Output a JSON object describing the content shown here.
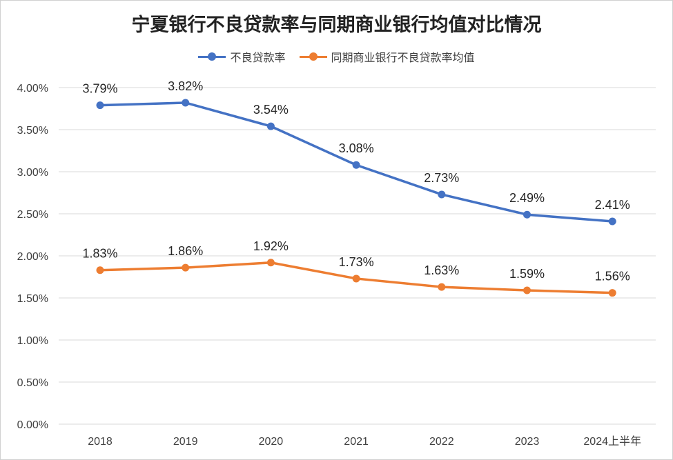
{
  "chart_data": {
    "type": "line",
    "title": "宁夏银行不良贷款率与同期商业银行均值对比情况",
    "categories": [
      "2018",
      "2019",
      "2020",
      "2021",
      "2022",
      "2023",
      "2024上半年"
    ],
    "series": [
      {
        "name": "不良贷款率",
        "color": "#4472C4",
        "values": [
          3.79,
          3.82,
          3.54,
          3.08,
          2.73,
          2.49,
          2.41
        ],
        "labels": [
          "3.79%",
          "3.82%",
          "3.54%",
          "3.08%",
          "2.73%",
          "2.49%",
          "2.41%"
        ]
      },
      {
        "name": "同期商业银行不良贷款率均值",
        "color": "#ED7D31",
        "values": [
          1.83,
          1.86,
          1.92,
          1.73,
          1.63,
          1.59,
          1.56
        ],
        "labels": [
          "1.83%",
          "1.86%",
          "1.92%",
          "1.73%",
          "1.63%",
          "1.59%",
          "1.56%"
        ]
      }
    ],
    "yticks": [
      "0.00%",
      "0.50%",
      "1.00%",
      "1.50%",
      "2.00%",
      "2.50%",
      "3.00%",
      "3.50%",
      "4.00%"
    ],
    "ylim": [
      0,
      4.0
    ],
    "grid": "horizontal",
    "legend": "top"
  }
}
